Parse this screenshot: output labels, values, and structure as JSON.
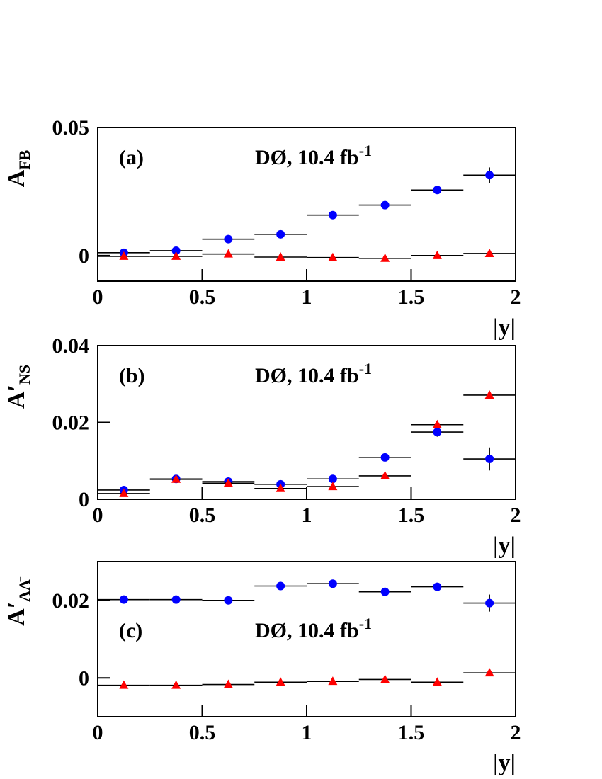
{
  "chart_data": [
    {
      "type": "scatter",
      "panel_label": "(a)",
      "annotation": "DØ, 10.4 fb",
      "annotation_sup": "-1",
      "ylabel": {
        "main": "A",
        "sub": "FB"
      },
      "xlabel": "|y|",
      "x": [
        0.125,
        0.375,
        0.625,
        0.875,
        1.125,
        1.375,
        1.625,
        1.875
      ],
      "xerr": 0.125,
      "xlim": [
        0,
        2
      ],
      "xticks": [
        0,
        0.5,
        1,
        1.5,
        2
      ],
      "ylim": [
        -0.01,
        0.05
      ],
      "yticks": [
        0,
        0.05
      ],
      "series": [
        {
          "color": "#0000ff",
          "marker": "circle",
          "values": [
            0.0011,
            0.0019,
            0.0064,
            0.0083,
            0.0158,
            0.0197,
            0.0256,
            0.0314
          ],
          "errors": [
            0.0005,
            0.0005,
            0.0005,
            0.0006,
            0.0007,
            0.0008,
            0.001,
            0.003
          ]
        },
        {
          "color": "#ff0000",
          "marker": "triangle",
          "values": [
            -0.0003,
            -0.0003,
            0.0006,
            -0.0006,
            -0.0008,
            -0.0011,
            0,
            0.0008
          ]
        }
      ]
    },
    {
      "type": "scatter",
      "panel_label": "(b)",
      "annotation": "DØ, 10.4 fb",
      "annotation_sup": "-1",
      "ylabel": {
        "main": "A′",
        "sub": "NS"
      },
      "xlabel": "|y|",
      "x": [
        0.125,
        0.375,
        0.625,
        0.875,
        1.125,
        1.375,
        1.625,
        1.875
      ],
      "xerr": 0.125,
      "xlim": [
        0,
        2
      ],
      "xticks": [
        0,
        0.5,
        1,
        1.5,
        2
      ],
      "ylim": [
        0,
        0.04
      ],
      "yticks": [
        0,
        0.02,
        0.04
      ],
      "series": [
        {
          "color": "#0000ff",
          "marker": "circle",
          "values": [
            0.0024,
            0.0053,
            0.0046,
            0.0039,
            0.0053,
            0.0109,
            0.0175,
            0.0105
          ],
          "errors": [
            0.0003,
            0.0003,
            0.0003,
            0.0003,
            0.0004,
            0.0005,
            0.0012,
            0.003
          ]
        },
        {
          "color": "#ff0000",
          "marker": "triangle",
          "values": [
            0.0015,
            0.0052,
            0.0042,
            0.0028,
            0.0033,
            0.0061,
            0.0194,
            0.0271
          ]
        }
      ]
    },
    {
      "type": "scatter",
      "panel_label": "(c)",
      "annotation": "DØ, 10.4 fb",
      "annotation_sup": "-1",
      "ylabel": {
        "main": "A′",
        "sub": "ΛΛ̄"
      },
      "xlabel": "|y|",
      "x": [
        0.125,
        0.375,
        0.625,
        0.875,
        1.125,
        1.375,
        1.625,
        1.875
      ],
      "xerr": 0.125,
      "xlim": [
        0,
        2
      ],
      "xticks": [
        0,
        0.5,
        1,
        1.5,
        2
      ],
      "ylim": [
        -0.01,
        0.03
      ],
      "yticks": [
        0,
        0.02
      ],
      "series": [
        {
          "color": "#0000ff",
          "marker": "circle",
          "values": [
            0.0202,
            0.0202,
            0.02,
            0.0237,
            0.0243,
            0.0222,
            0.0235,
            0.0193
          ],
          "errors": [
            0.0003,
            0.0003,
            0.0003,
            0.0004,
            0.0004,
            0.0005,
            0.0008,
            0.0022
          ]
        },
        {
          "color": "#ff0000",
          "marker": "triangle",
          "values": [
            -0.0019,
            -0.0019,
            -0.0017,
            -0.0011,
            -0.0009,
            -0.0004,
            -0.0011,
            0.0013
          ]
        }
      ]
    }
  ]
}
